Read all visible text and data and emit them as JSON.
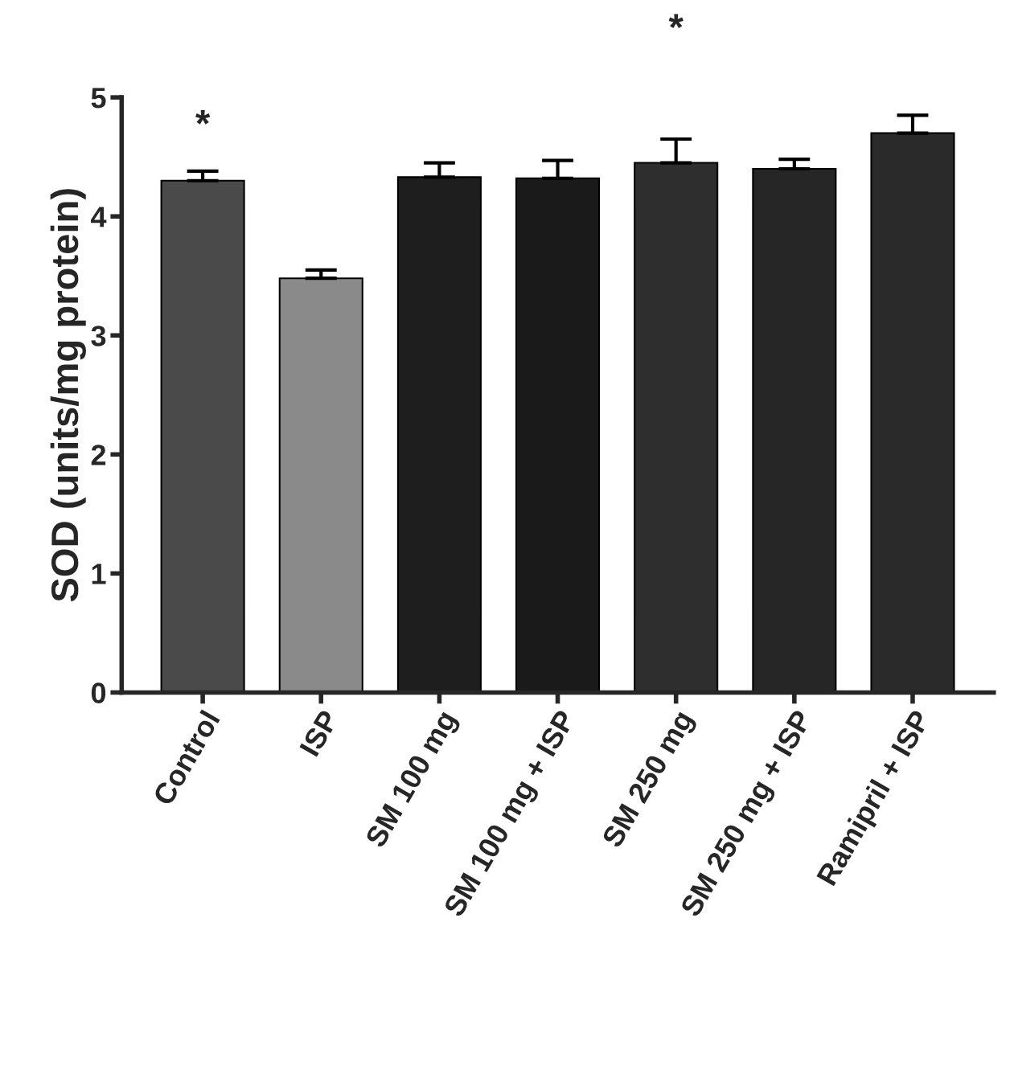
{
  "chart_data": {
    "type": "bar",
    "ylabel": "SOD (units/mg protein)",
    "categories": [
      "Control",
      "ISP",
      "SM 100 mg",
      "SM 100 mg + ISP",
      "SM 250 mg",
      "SM 250 mg + ISP",
      "Ramipril + ISP"
    ],
    "values": [
      4.3,
      3.48,
      4.33,
      4.32,
      4.45,
      4.4,
      4.7
    ],
    "errors": [
      [
        4.3,
        4.38
      ],
      [
        3.48,
        3.55
      ],
      [
        4.33,
        4.45
      ],
      [
        4.32,
        4.47
      ],
      [
        4.45,
        4.65
      ],
      [
        4.4,
        4.48
      ],
      [
        4.7,
        4.85
      ]
    ],
    "colors": [
      "#4a4a4a",
      "#8a8a8a",
      "#1e1e1e",
      "#1a1a1a",
      "#2e2e2e",
      "#262626",
      "#2a2a2a"
    ],
    "ylim": [
      0,
      5
    ],
    "yticks": [
      0,
      1,
      2,
      3,
      4,
      5
    ],
    "grid": false,
    "annotations": [
      "*",
      "*"
    ]
  }
}
